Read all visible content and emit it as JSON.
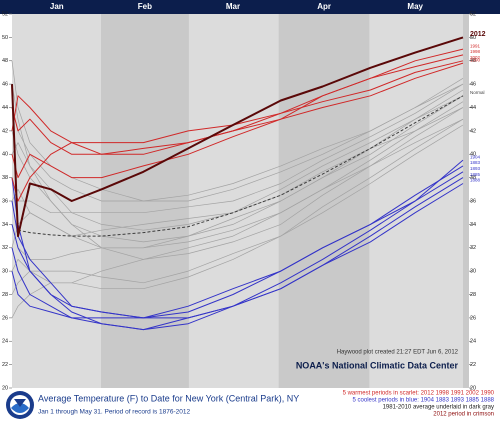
{
  "chart_data": {
    "type": "line",
    "title": "Average Temperature (F) to Date for New York (Central Park), NY",
    "subtitle": "Jan 1 through May 31. Period of record is 1876-2012",
    "source": "NOAA's National Climatic Data Center",
    "credit": "Haywood plot created 21:27 EDT Jun 6, 2012",
    "notes": [
      "5 warmest periods in scarlet: 2012 1998 1991 2002 1990",
      "5 coolest periods in blue: 1904 1883 1893 1885 1888",
      "1981-2010 average underlaid in dark gray",
      "2012 period in crimson"
    ],
    "x": [
      1,
      3,
      7,
      14,
      21,
      31,
      45,
      60,
      75,
      91,
      105,
      121,
      136,
      152
    ],
    "xlim": [
      1,
      152
    ],
    "xticks": [
      {
        "value": 16,
        "label": "Jan"
      },
      {
        "value": 45.5,
        "label": "Feb"
      },
      {
        "value": 75,
        "label": "Mar"
      },
      {
        "value": 105.5,
        "label": "Apr"
      },
      {
        "value": 136,
        "label": "May"
      }
    ],
    "ylim": [
      20,
      52
    ],
    "yticks": [
      20,
      22,
      24,
      26,
      28,
      30,
      32,
      34,
      36,
      38,
      40,
      42,
      44,
      46,
      48,
      50,
      52
    ],
    "series": [
      {
        "color": "#a3a3a3",
        "values": [
          30,
          31,
          30,
          29,
          29,
          30,
          31,
          32,
          33,
          35,
          37,
          39,
          41,
          43
        ]
      },
      {
        "color": "#a3a3a3",
        "values": [
          44,
          42,
          40,
          38,
          37,
          36,
          36,
          36.5,
          37.5,
          39,
          40.5,
          42,
          44,
          46
        ]
      },
      {
        "color": "#a3a3a3",
        "values": [
          36,
          37,
          35,
          34,
          33,
          32,
          32,
          33,
          34,
          36,
          38,
          40,
          42.5,
          45
        ]
      },
      {
        "color": "#a3a3a3",
        "values": [
          40,
          41,
          39,
          37,
          35,
          34,
          33.5,
          34,
          35,
          37,
          39,
          41,
          43,
          45.5
        ]
      },
      {
        "color": "#a3a3a3",
        "values": [
          28,
          29,
          30,
          30,
          30,
          29.5,
          29,
          30,
          31.5,
          33,
          35.5,
          38,
          40.5,
          43
        ]
      },
      {
        "color": "#a3a3a3",
        "values": [
          48,
          44,
          41,
          39,
          38,
          37,
          36,
          36,
          37,
          38.5,
          40,
          42,
          44,
          46.5
        ]
      },
      {
        "color": "#a3a3a3",
        "values": [
          34,
          32,
          31,
          31,
          31.5,
          32,
          32,
          32.5,
          33.5,
          35,
          37,
          39.5,
          42,
          44
        ]
      },
      {
        "color": "#a3a3a3",
        "values": [
          38,
          36,
          36,
          35,
          35,
          35,
          35,
          35.5,
          36,
          37.5,
          39.5,
          41.5,
          43.5,
          46
        ]
      },
      {
        "color": "#a3a3a3",
        "values": [
          26,
          27,
          28,
          29,
          29,
          28.5,
          28.5,
          29.5,
          31,
          33,
          35,
          37.5,
          40,
          42.5
        ]
      },
      {
        "color": "#a3a3a3",
        "values": [
          42,
          40,
          38,
          36,
          34,
          33,
          32.5,
          33,
          34.5,
          36,
          38,
          40.5,
          43,
          45
        ]
      },
      {
        "color": "#a3a3a3",
        "values": [
          32,
          34,
          35,
          34,
          33,
          33.5,
          34,
          34.5,
          35,
          36.5,
          38.5,
          40.5,
          42,
          44.5
        ]
      },
      {
        "color": "#a3a3a3",
        "values": [
          46,
          43,
          39,
          36,
          34,
          32,
          31,
          31.5,
          32.5,
          34,
          36.5,
          39,
          41.5,
          44
        ]
      },
      {
        "name": "1904",
        "color": "#3434c8",
        "values": [
          32,
          30,
          28,
          27,
          26,
          25.5,
          25,
          26,
          27,
          29,
          31,
          33.5,
          36,
          39.5
        ]
      },
      {
        "name": "1883",
        "color": "#3434c8",
        "values": [
          38,
          34,
          30,
          28,
          27,
          26.5,
          26,
          26.5,
          28,
          30,
          32,
          34,
          36.5,
          39
        ]
      },
      {
        "name": "1893",
        "color": "#3434c8",
        "values": [
          30,
          28,
          27,
          26.5,
          26,
          26,
          26,
          27,
          28.5,
          30,
          32,
          34,
          36,
          38.5
        ]
      },
      {
        "name": "1885",
        "color": "#3434c8",
        "values": [
          36,
          33,
          31,
          29,
          27,
          26.5,
          26,
          26,
          27,
          28.5,
          30.5,
          33,
          35.5,
          38
        ]
      },
      {
        "name": "1888",
        "color": "#3434c8",
        "values": [
          34,
          32,
          30,
          28,
          26.5,
          25.5,
          25,
          25.5,
          27,
          28.5,
          30.5,
          32.5,
          35,
          37.5
        ]
      },
      {
        "name": "1998",
        "color": "#d02828",
        "values": [
          42,
          45,
          44,
          42,
          41,
          40,
          40,
          41,
          42,
          43.5,
          45,
          46.5,
          47.5,
          48.5
        ]
      },
      {
        "name": "1991",
        "color": "#d02828",
        "values": [
          40,
          38,
          40,
          39,
          38,
          38,
          39,
          40,
          41.5,
          43,
          45,
          46.5,
          48,
          49
        ]
      },
      {
        "name": "2002",
        "color": "#d02828",
        "values": [
          38,
          36,
          38,
          40,
          41,
          41,
          41,
          42,
          42.5,
          43.5,
          44.5,
          45.5,
          47,
          48
        ]
      },
      {
        "name": "1990",
        "color": "#d02828",
        "values": [
          44,
          42,
          43,
          41,
          40,
          40,
          40.5,
          41,
          42,
          43,
          44,
          45,
          46.5,
          47.8
        ]
      },
      {
        "name": "Normal",
        "color": "#3c3c3c",
        "dashed": true,
        "values": [
          null,
          33.5,
          33.3,
          33.1,
          33,
          33,
          33.3,
          33.8,
          35,
          36.5,
          38.3,
          40.5,
          42.7,
          45
        ]
      },
      {
        "name": "2012",
        "color": "#5a0808",
        "values": [
          46,
          33,
          37.5,
          37,
          36,
          37,
          38.5,
          40.5,
          42.5,
          44.6,
          45.8,
          47.4,
          48.7,
          50
        ]
      }
    ]
  }
}
